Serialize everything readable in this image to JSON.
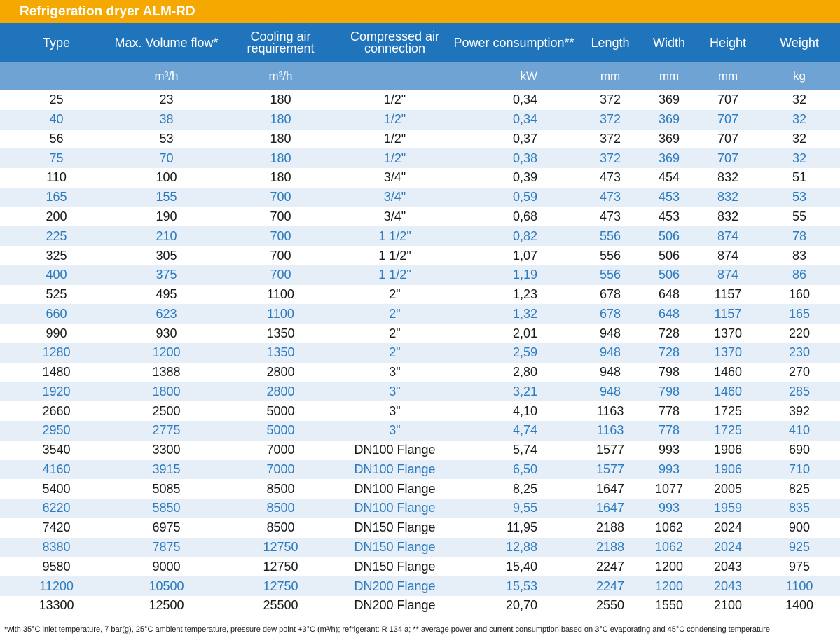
{
  "title": "Refrigeration dryer ALM-RD",
  "headers": [
    "Type",
    "Max. Volume flow*",
    "Cooling air requirement",
    "Compressed air connection",
    "Power consumption**",
    "Length",
    "Width",
    "Height",
    "Weight"
  ],
  "units": [
    "",
    "m³/h",
    "m³/h",
    "",
    "kW",
    "mm",
    "mm",
    "mm",
    "kg"
  ],
  "rows": [
    [
      "25",
      "23",
      "180",
      "1/2\"",
      "0,34",
      "372",
      "369",
      "707",
      "32"
    ],
    [
      "40",
      "38",
      "180",
      "1/2\"",
      "0,34",
      "372",
      "369",
      "707",
      "32"
    ],
    [
      "56",
      "53",
      "180",
      "1/2\"",
      "0,37",
      "372",
      "369",
      "707",
      "32"
    ],
    [
      "75",
      "70",
      "180",
      "1/2\"",
      "0,38",
      "372",
      "369",
      "707",
      "32"
    ],
    [
      "110",
      "100",
      "180",
      "3/4\"",
      "0,39",
      "473",
      "454",
      "832",
      "51"
    ],
    [
      "165",
      "155",
      "700",
      "3/4\"",
      "0,59",
      "473",
      "453",
      "832",
      "53"
    ],
    [
      "200",
      "190",
      "700",
      "3/4\"",
      "0,68",
      "473",
      "453",
      "832",
      "55"
    ],
    [
      "225",
      "210",
      "700",
      "1 1/2\"",
      "0,82",
      "556",
      "506",
      "874",
      "78"
    ],
    [
      "325",
      "305",
      "700",
      "1 1/2\"",
      "1,07",
      "556",
      "506",
      "874",
      "83"
    ],
    [
      "400",
      "375",
      "700",
      "1 1/2\"",
      "1,19",
      "556",
      "506",
      "874",
      "86"
    ],
    [
      "525",
      "495",
      "1100",
      "2\"",
      "1,23",
      "678",
      "648",
      "1157",
      "160"
    ],
    [
      "660",
      "623",
      "1100",
      "2\"",
      "1,32",
      "678",
      "648",
      "1157",
      "165"
    ],
    [
      "990",
      "930",
      "1350",
      "2\"",
      "2,01",
      "948",
      "728",
      "1370",
      "220"
    ],
    [
      "1280",
      "1200",
      "1350",
      "2\"",
      "2,59",
      "948",
      "728",
      "1370",
      "230"
    ],
    [
      "1480",
      "1388",
      "2800",
      "3\"",
      "2,80",
      "948",
      "798",
      "1460",
      "270"
    ],
    [
      "1920",
      "1800",
      "2800",
      "3\"",
      "3,21",
      "948",
      "798",
      "1460",
      "285"
    ],
    [
      "2660",
      "2500",
      "5000",
      "3\"",
      "4,10",
      "1163",
      "778",
      "1725",
      "392"
    ],
    [
      "2950",
      "2775",
      "5000",
      "3\"",
      "4,74",
      "1163",
      "778",
      "1725",
      "410"
    ],
    [
      "3540",
      "3300",
      "7000",
      "DN100 Flange",
      "5,74",
      "1577",
      "993",
      "1906",
      "690"
    ],
    [
      "4160",
      "3915",
      "7000",
      "DN100 Flange",
      "6,50",
      "1577",
      "993",
      "1906",
      "710"
    ],
    [
      "5400",
      "5085",
      "8500",
      "DN100 Flange",
      "8,25",
      "1647",
      "1077",
      "2005",
      "825"
    ],
    [
      "6220",
      "5850",
      "8500",
      "DN100 Flange",
      "9,55",
      "1647",
      "993",
      "1959",
      "835"
    ],
    [
      "7420",
      "6975",
      "8500",
      "DN150 Flange",
      "11,95",
      "2188",
      "1062",
      "2024",
      "900"
    ],
    [
      "8380",
      "7875",
      "12750",
      "DN150 Flange",
      "12,88",
      "2188",
      "1062",
      "2024",
      "925"
    ],
    [
      "9580",
      "9000",
      "12750",
      "DN150 Flange",
      "15,40",
      "2247",
      "1200",
      "2043",
      "975"
    ],
    [
      "11200",
      "10500",
      "12750",
      "DN200 Flange",
      "15,53",
      "2247",
      "1200",
      "2043",
      "1100"
    ],
    [
      "13300",
      "12500",
      "25500",
      "DN200 Flange",
      "20,70",
      "2550",
      "1550",
      "2100",
      "1400"
    ]
  ],
  "footnote": "*with 35°C inlet temperature, 7 bar(g), 25°C ambient temperature, pressure dew point +3°C (m³/h); refrigerant: R 134 a; ** average power and current consumption based on 3°C evaporating and 45°C condensing temperature.",
  "colors": {
    "title_bg": "#f5a800",
    "header_bg": "#1f74bc",
    "units_bg": "#6ea3d4",
    "alt_row_bg": "#e6eef7",
    "alt_row_text": "#2b7bbf"
  }
}
